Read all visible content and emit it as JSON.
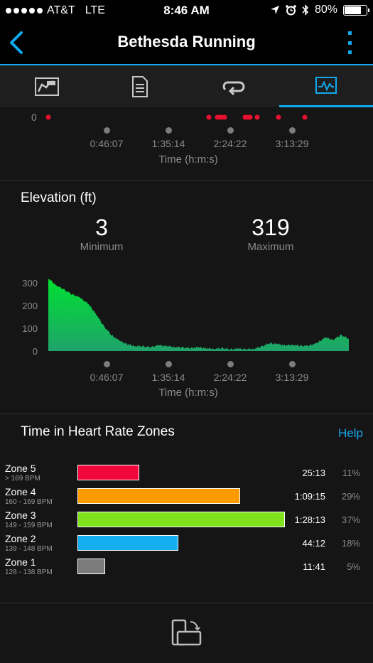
{
  "status": {
    "carrier": "AT&T",
    "network": "LTE",
    "time": "8:46 AM",
    "battery": "80%",
    "battery_level": 0.8
  },
  "nav": {
    "title": "Bethesda Running"
  },
  "tabs": [
    {
      "name": "summary",
      "icon": "map-summary-icon"
    },
    {
      "name": "details",
      "icon": "document-icon"
    },
    {
      "name": "laps",
      "icon": "laps-loop-icon"
    },
    {
      "name": "charts",
      "icon": "chart-icon",
      "active": true
    }
  ],
  "top_chart": {
    "y_tick": "0",
    "x_ticks": [
      "0:46:07",
      "1:35:14",
      "2:24:22",
      "3:13:29"
    ],
    "x_title": "Time (h:m:s)",
    "point_color": "#e8102e"
  },
  "elevation": {
    "title": "Elevation (ft)",
    "min_value": "3",
    "min_label": "Minimum",
    "max_value": "319",
    "max_label": "Maximum"
  },
  "chart_data": {
    "type": "area",
    "title": "Elevation (ft)",
    "xlabel": "Time (h:m:s)",
    "ylabel": "",
    "x_ticks": [
      "0:46:07",
      "1:35:14",
      "2:24:22",
      "3:13:29"
    ],
    "y_ticks": [
      "0",
      "100",
      "200",
      "300"
    ],
    "ylim": [
      0,
      319
    ],
    "series": [
      {
        "x_hours": [
          0.0,
          0.1,
          0.2,
          0.3,
          0.4,
          0.5,
          0.6,
          0.7,
          0.8,
          0.9,
          1.0,
          1.1,
          1.2,
          1.3,
          1.4,
          1.5,
          1.6,
          1.7,
          1.8,
          1.9,
          2.0,
          2.1,
          2.2,
          2.3,
          2.4,
          2.5,
          2.6,
          2.7,
          2.8,
          2.9,
          3.0,
          3.1,
          3.2,
          3.3,
          3.4,
          3.5,
          3.6,
          3.7,
          3.8
        ],
        "values": [
          319,
          290,
          270,
          250,
          235,
          210,
          165,
          110,
          70,
          45,
          30,
          22,
          20,
          18,
          25,
          22,
          18,
          15,
          14,
          16,
          12,
          10,
          12,
          8,
          10,
          8,
          10,
          20,
          35,
          30,
          25,
          28,
          22,
          25,
          35,
          60,
          50,
          70,
          55
        ]
      }
    ],
    "color_top": "#00e032",
    "color_bottom": "#1fa36a"
  },
  "zones": {
    "title": "Time in Heart Rate Zones",
    "help": "Help",
    "items": [
      {
        "name": "Zone 5",
        "bpm": "> 169 BPM",
        "time": "25:13",
        "pct": "11%",
        "fraction": 0.11,
        "color": "#f2073d"
      },
      {
        "name": "Zone 4",
        "bpm": "160 - 169 BPM",
        "time": "1:09:15",
        "pct": "29%",
        "fraction": 0.29,
        "color": "#fd9a00"
      },
      {
        "name": "Zone 3",
        "bpm": "149 - 159 BPM",
        "time": "1:28:13",
        "pct": "37%",
        "fraction": 0.37,
        "color": "#7fe21d"
      },
      {
        "name": "Zone 2",
        "bpm": "139 - 148 BPM",
        "time": "44:12",
        "pct": "18%",
        "fraction": 0.18,
        "color": "#12aef0"
      },
      {
        "name": "Zone 1",
        "bpm": "128 - 138 BPM",
        "time": "11:41",
        "pct": "5%",
        "fraction": 0.05,
        "color": "#7b7b7b"
      }
    ]
  },
  "footer": {
    "icon": "rotate-device-icon"
  }
}
